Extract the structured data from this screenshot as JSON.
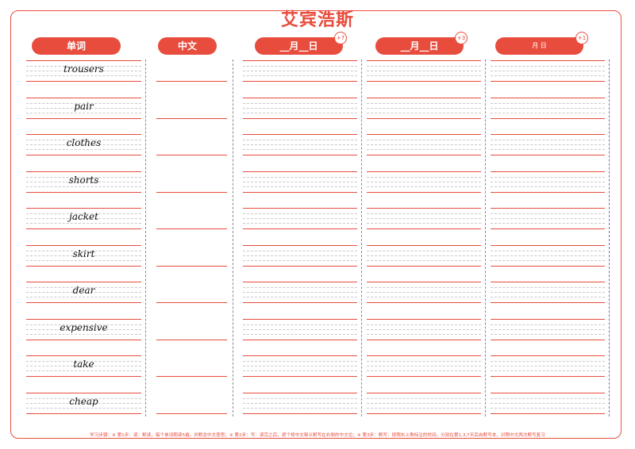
{
  "title": "艾宾浩斯",
  "headers": {
    "word": "单词",
    "chinese": "中文",
    "date1": "__月__日",
    "date2": "__月__日",
    "date3": "月    日"
  },
  "badges": {
    "b1": "+7",
    "b2": "+3",
    "b3": "+1"
  },
  "words": [
    "trousers",
    "pair",
    "clothes",
    "shorts",
    "jacket",
    "skirt",
    "dear",
    "expensive",
    "take",
    "cheap"
  ],
  "footer": "学习步骤：※ 第1步：读：默读，每个单词朗读5遍，并默念中文意思；※ 第2步：写：读完之后，遮个将中文释义默写在右侧的中文位；※ 第3步：默写：按照右上角标注的时间，分别在第1,3,7天后自默写本，对照中文两次默写复习",
  "colors": {
    "accent": "#e84c3d"
  }
}
